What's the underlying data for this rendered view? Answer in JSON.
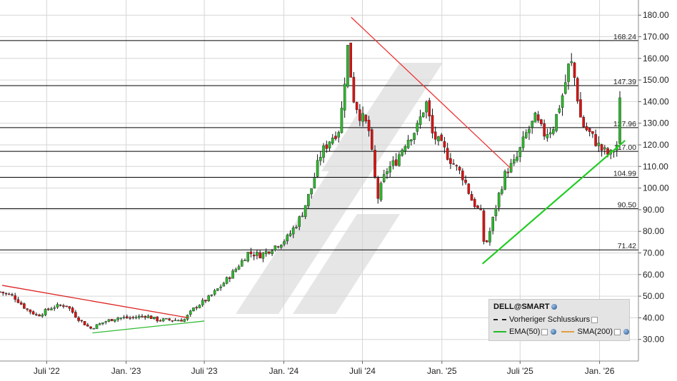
{
  "chart_data": {
    "type": "candlestick",
    "symbol": "DELL@SMART",
    "y_axis": {
      "ticks": [
        30,
        40,
        50,
        60,
        70,
        80,
        90,
        100,
        110,
        120,
        130,
        140,
        150,
        160,
        170,
        180
      ],
      "tick_labels": [
        "30.00",
        "40.00",
        "50.00",
        "60.00",
        "70.00",
        "80.00",
        "90.00",
        "100.00",
        "110.00",
        "120.00",
        "130.00",
        "140.00",
        "150.00",
        "160.00",
        "170.00",
        "180.00"
      ],
      "range": [
        20,
        187
      ],
      "position": "right"
    },
    "x_axis": {
      "range": [
        "2022-03-15",
        "2026-04-01"
      ],
      "ticks": [
        {
          "date": "2022-07-01",
          "label": "Juli '22"
        },
        {
          "date": "2023-01-01",
          "label": "Jan. '23"
        },
        {
          "date": "2023-07-01",
          "label": "Juli '23"
        },
        {
          "date": "2024-01-01",
          "label": "Jan. '24"
        },
        {
          "date": "2024-07-01",
          "label": "Juli '24"
        },
        {
          "date": "2025-01-01",
          "label": "Jan. '25"
        },
        {
          "date": "2025-07-01",
          "label": "Juli '25"
        },
        {
          "date": "2026-01-01",
          "label": "Jan. '26"
        }
      ]
    },
    "grid": true,
    "levels": [
      {
        "value": 168.24,
        "label": "168.24"
      },
      {
        "value": 147.39,
        "label": "147.39"
      },
      {
        "value": 127.96,
        "label": "127.96"
      },
      {
        "value": 117.0,
        "label": "117.00"
      },
      {
        "value": 104.99,
        "label": "104.99"
      },
      {
        "value": 90.5,
        "label": "90.50"
      },
      {
        "value": 71.42,
        "label": "71.42"
      }
    ],
    "trendlines": [
      {
        "color": "#dd2222",
        "from": {
          "date": "2022-03-20",
          "value": 55
        },
        "to": {
          "date": "2023-05-25",
          "value": 40
        }
      },
      {
        "color": "#33bb33",
        "from": {
          "date": "2022-10-15",
          "value": 33
        },
        "to": {
          "date": "2023-07-01",
          "value": 38.5
        }
      },
      {
        "color": "#ee3333",
        "from": {
          "date": "2024-06-05",
          "value": 179
        },
        "to": {
          "date": "2025-06-10",
          "value": 109
        }
      },
      {
        "color": "#22cc22",
        "from": {
          "date": "2025-04-05",
          "value": 65
        },
        "to": {
          "date": "2026-03-01",
          "value": 122
        }
      }
    ],
    "series": [
      {
        "type": "candlestick",
        "anchors": [
          [
            "2022-03-15",
            52
          ],
          [
            "2022-04-15",
            50
          ],
          [
            "2022-05-15",
            44
          ],
          [
            "2022-06-10",
            41
          ],
          [
            "2022-07-15",
            45
          ],
          [
            "2022-08-15",
            46
          ],
          [
            "2022-09-10",
            40
          ],
          [
            "2022-10-10",
            35
          ],
          [
            "2022-11-10",
            38
          ],
          [
            "2022-12-10",
            40
          ],
          [
            "2023-01-15",
            40
          ],
          [
            "2023-02-15",
            41
          ],
          [
            "2023-03-15",
            39
          ],
          [
            "2023-04-15",
            39
          ],
          [
            "2023-05-15",
            39
          ],
          [
            "2023-06-10",
            45
          ],
          [
            "2023-07-10",
            49
          ],
          [
            "2023-08-10",
            55
          ],
          [
            "2023-09-10",
            62
          ],
          [
            "2023-10-10",
            70
          ],
          [
            "2023-11-10",
            69
          ],
          [
            "2023-12-10",
            73
          ],
          [
            "2024-01-10",
            77
          ],
          [
            "2024-02-10",
            87
          ],
          [
            "2024-03-05",
            100
          ],
          [
            "2024-03-25",
            115
          ],
          [
            "2024-04-15",
            122
          ],
          [
            "2024-05-10",
            128
          ],
          [
            "2024-05-28",
            165
          ],
          [
            "2024-06-10",
            142
          ],
          [
            "2024-06-25",
            134
          ],
          [
            "2024-07-15",
            128
          ],
          [
            "2024-08-05",
            95
          ],
          [
            "2024-08-25",
            108
          ],
          [
            "2024-09-15",
            112
          ],
          [
            "2024-10-10",
            122
          ],
          [
            "2024-11-05",
            128
          ],
          [
            "2024-11-25",
            140
          ],
          [
            "2024-12-10",
            125
          ],
          [
            "2025-01-05",
            118
          ],
          [
            "2025-01-25",
            112
          ],
          [
            "2025-02-20",
            105
          ],
          [
            "2025-03-10",
            95
          ],
          [
            "2025-04-01",
            88
          ],
          [
            "2025-04-10",
            72
          ],
          [
            "2025-04-25",
            82
          ],
          [
            "2025-05-10",
            95
          ],
          [
            "2025-05-30",
            108
          ],
          [
            "2025-06-20",
            112
          ],
          [
            "2025-07-15",
            125
          ],
          [
            "2025-08-05",
            132
          ],
          [
            "2025-08-25",
            125
          ],
          [
            "2025-09-15",
            128
          ],
          [
            "2025-10-10",
            145
          ],
          [
            "2025-10-25",
            160
          ],
          [
            "2025-11-05",
            150
          ],
          [
            "2025-11-20",
            130
          ],
          [
            "2025-12-10",
            125
          ],
          [
            "2026-01-05",
            118
          ],
          [
            "2026-01-25",
            115
          ],
          [
            "2026-02-10",
            120
          ],
          [
            "2026-02-20",
            148
          ]
        ]
      }
    ],
    "legend": {
      "placement": "bottom-right",
      "title": "DELL@SMART",
      "entries": [
        {
          "name": "Vorheriger Schlusskurs",
          "color": "#222222",
          "dash": true
        },
        {
          "name": "EMA(50)",
          "color": "#22bb22"
        },
        {
          "name": "SMA(200)",
          "color": "#e0a040"
        }
      ]
    },
    "colors": {
      "up": "#2db82d",
      "down": "#dd1111",
      "level": "#000000",
      "watermark": "#e6e6e6"
    }
  }
}
